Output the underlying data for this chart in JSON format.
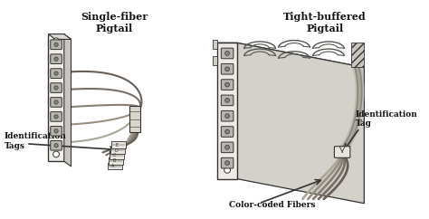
{
  "background_color": "#ffffff",
  "title_left": "Single-fiber\nPigtail",
  "title_right": "Tight-buffered\nPigtail",
  "label_id_tags": "Identification\nTags",
  "label_id_tag": "Identification\nTag",
  "label_color_coded": "Color-coded Fibers",
  "text_color": "#111111",
  "line_color": "#333333",
  "panel_face": "#f0ede8",
  "panel_side": "#c8c4be",
  "panel_top": "#dedad4",
  "connector_outer": "#b8b4ae",
  "connector_inner": "#888880",
  "fiber_colors": [
    "#aaa898",
    "#989080",
    "#888078",
    "#787068",
    "#686058"
  ],
  "sleeve_color": "#d8d4ce",
  "tag_color": "#e8e4de",
  "right_panel_face": "#eeebe6",
  "right_panel_side": "#d4d0ca",
  "right_panel_top": "#e0dcd6"
}
